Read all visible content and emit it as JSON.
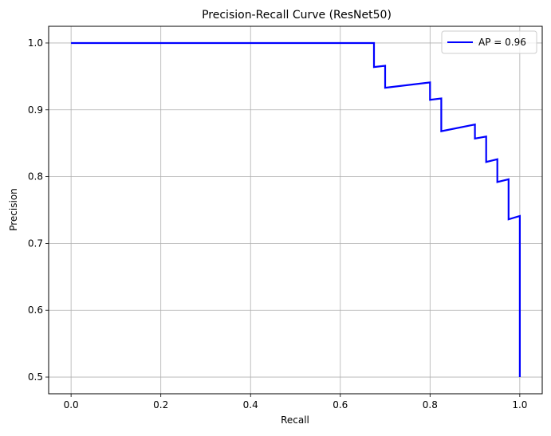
{
  "chart_data": {
    "type": "line",
    "title": "Precision-Recall Curve (ResNet50)",
    "xlabel": "Recall",
    "ylabel": "Precision",
    "xlim": [
      -0.05,
      1.05
    ],
    "ylim": [
      0.475,
      1.025
    ],
    "xticks": [
      0.0,
      0.2,
      0.4,
      0.6,
      0.8,
      1.0
    ],
    "xtick_labels": [
      "0.0",
      "0.2",
      "0.4",
      "0.6",
      "0.8",
      "1.0"
    ],
    "yticks": [
      0.5,
      0.6,
      0.7,
      0.8,
      0.9,
      1.0
    ],
    "ytick_labels": [
      "0.5",
      "0.6",
      "0.7",
      "0.8",
      "0.9",
      "1.0"
    ],
    "grid": true,
    "legend_position": "upper right",
    "series": [
      {
        "name": "AP = 0.96",
        "color": "#0000ff",
        "x": [
          0.0,
          0.675,
          0.675,
          0.7,
          0.7,
          0.8,
          0.8,
          0.825,
          0.825,
          0.9,
          0.9,
          0.925,
          0.925,
          0.95,
          0.95,
          0.975,
          0.975,
          1.0,
          1.0
        ],
        "y": [
          1.0,
          1.0,
          0.964,
          0.966,
          0.933,
          0.941,
          0.915,
          0.917,
          0.868,
          0.878,
          0.857,
          0.86,
          0.822,
          0.826,
          0.792,
          0.796,
          0.736,
          0.741,
          0.5
        ]
      }
    ]
  }
}
